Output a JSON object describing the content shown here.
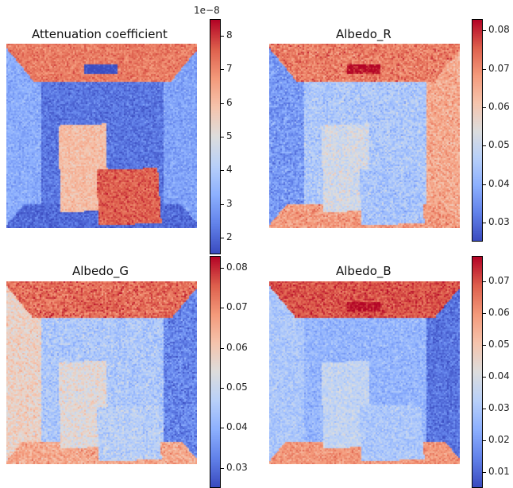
{
  "chart_data": [
    {
      "type": "heatmap",
      "title": "Attenuation coefficient",
      "colormap": "coolwarm",
      "vmin": 1.5,
      "vmax": 8.5,
      "colorbar_offset": "1e−8",
      "colorbar_ticks": [
        "2",
        "3",
        "4",
        "5",
        "6",
        "7",
        "8"
      ],
      "colorbar_tick_values": [
        2,
        3,
        4,
        5,
        6,
        7,
        8
      ],
      "scene": {
        "ceiling": 7.2,
        "floor": 2.0,
        "left_wall": 3.2,
        "right_wall": 3.0,
        "back_wall": 2.2,
        "light": 1.5,
        "tall_box": 6.0,
        "short_box": 7.6,
        "noise": 0.9
      }
    },
    {
      "type": "heatmap",
      "title": "Albedo_R",
      "colormap": "coolwarm",
      "vmin": 0.025,
      "vmax": 0.083,
      "colorbar_ticks": [
        "0.03",
        "0.04",
        "0.05",
        "0.06",
        "0.07",
        "0.08"
      ],
      "colorbar_tick_values": [
        0.03,
        0.04,
        0.05,
        0.06,
        0.07,
        0.08
      ],
      "scene": {
        "ceiling": 0.072,
        "floor": 0.068,
        "left_wall": 0.036,
        "right_wall": 0.066,
        "back_wall": 0.045,
        "light": 0.083,
        "tall_box": 0.052,
        "short_box": 0.044,
        "noise": 0.01
      }
    },
    {
      "type": "heatmap",
      "title": "Albedo_G",
      "colormap": "coolwarm",
      "vmin": 0.025,
      "vmax": 0.083,
      "colorbar_ticks": [
        "0.03",
        "0.04",
        "0.05",
        "0.06",
        "0.07",
        "0.08"
      ],
      "colorbar_tick_values": [
        0.03,
        0.04,
        0.05,
        0.06,
        0.07,
        0.08
      ],
      "scene": {
        "ceiling": 0.074,
        "floor": 0.066,
        "left_wall": 0.058,
        "right_wall": 0.033,
        "back_wall": 0.045,
        "light": 0.076,
        "tall_box": 0.055,
        "short_box": 0.047,
        "noise": 0.01
      }
    },
    {
      "type": "heatmap",
      "title": "Albedo_B",
      "colormap": "coolwarm",
      "vmin": 0.005,
      "vmax": 0.078,
      "colorbar_ticks": [
        "0.01",
        "0.02",
        "0.03",
        "0.04",
        "0.05",
        "0.06",
        "0.07"
      ],
      "colorbar_tick_values": [
        0.01,
        0.02,
        0.03,
        0.04,
        0.05,
        0.06,
        0.07
      ],
      "scene": {
        "ceiling": 0.07,
        "floor": 0.06,
        "left_wall": 0.03,
        "right_wall": 0.012,
        "back_wall": 0.025,
        "light": 0.078,
        "tall_box": 0.035,
        "short_box": 0.03,
        "noise": 0.01
      }
    }
  ]
}
